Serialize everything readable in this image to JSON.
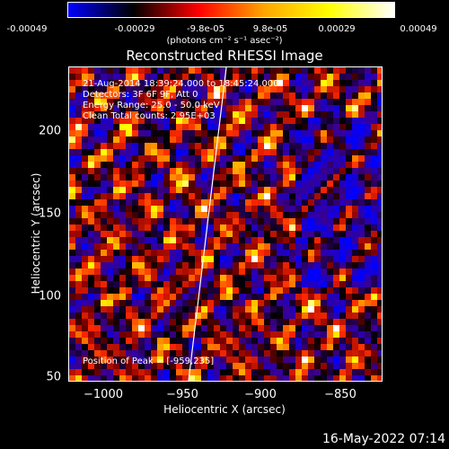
{
  "colorbar": {
    "ticks": [
      "-0.00049",
      "-0.00029",
      "-9.8e-05",
      "9.8e-05",
      "0.00029",
      "0.00049"
    ],
    "units": "(photons cm⁻² s⁻¹ asec⁻²)",
    "colors": [
      "#0000ff",
      "#000000",
      "#ff0000",
      "#ffa500",
      "#ffff00",
      "#ffffff"
    ]
  },
  "title": "Reconstructed RHESSI Image",
  "info": {
    "time": "21-Aug-2014 18:39:24.000 to 18:45:24.000",
    "detectors": "Detectors: 3F 6F 9F, Att 0",
    "energy": "Energy Range: 25.0 - 50.0 keV",
    "clean": "Clean     Total counts: 2.95E+03",
    "peak": "Position of Peak = [-959,235]"
  },
  "y_axis": {
    "label": "Heliocentric Y (arcsec)",
    "ticks": [
      "200",
      "150",
      "100",
      "50"
    ],
    "range": [
      48,
      242
    ]
  },
  "x_axis": {
    "label": "Heliocentric X (arcsec)",
    "ticks": [
      "−1000",
      "−950",
      "−900",
      "−850"
    ],
    "range": [
      -1032,
      -828
    ]
  },
  "timestamp": "16-May-2022 07:14"
}
